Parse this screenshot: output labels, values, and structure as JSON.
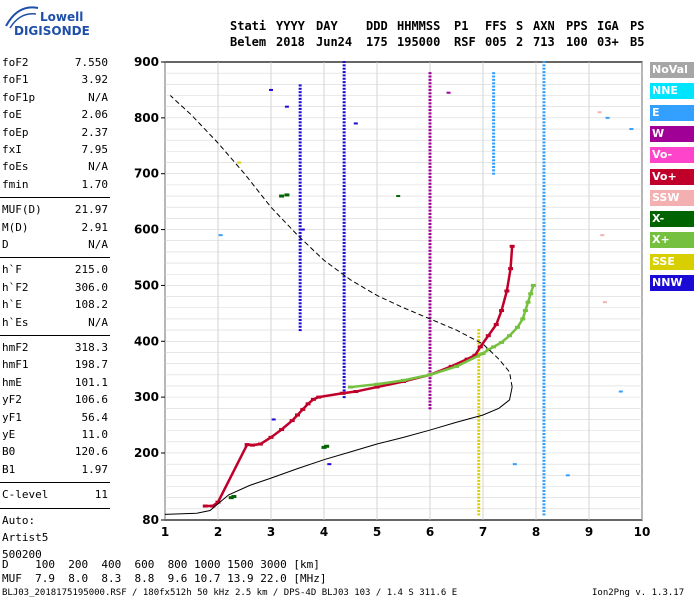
{
  "logo": {
    "line1": "Lowell",
    "line2": "DIGISONDE"
  },
  "header": {
    "labels": [
      "Stati",
      "YYYY",
      "DAY",
      "DDD",
      "HHMMSS",
      "P1",
      "FFS",
      "S",
      "AXN",
      "PPS",
      "IGA",
      "PS"
    ],
    "values": [
      "Belem",
      "2018",
      "Jun24",
      "175",
      "195000",
      "RSF",
      "005",
      "2",
      "713",
      "100",
      "03+",
      "B5"
    ]
  },
  "params": {
    "group1": [
      {
        "k": "foF2",
        "v": "7.550"
      },
      {
        "k": "foF1",
        "v": "3.92"
      },
      {
        "k": "foF1p",
        "v": "N/A"
      },
      {
        "k": "foE",
        "v": "2.06"
      },
      {
        "k": "foEp",
        "v": "2.37"
      },
      {
        "k": "fxI",
        "v": "7.95"
      },
      {
        "k": "foEs",
        "v": "N/A"
      },
      {
        "k": "fmin",
        "v": "1.70"
      }
    ],
    "group2": [
      {
        "k": "MUF(D)",
        "v": "21.97"
      },
      {
        "k": "M(D)",
        "v": "2.91"
      },
      {
        "k": "D",
        "v": "N/A"
      }
    ],
    "group3": [
      {
        "k": "h`F",
        "v": "215.0"
      },
      {
        "k": "h`F2",
        "v": "306.0"
      },
      {
        "k": "h`E",
        "v": "108.2"
      },
      {
        "k": "h`Es",
        "v": "N/A"
      }
    ],
    "group4": [
      {
        "k": "hmF2",
        "v": "318.3"
      },
      {
        "k": "hmF1",
        "v": "198.7"
      },
      {
        "k": "hmE",
        "v": "101.1"
      },
      {
        "k": "yF2",
        "v": "106.6"
      },
      {
        "k": "yF1",
        "v": "56.4"
      },
      {
        "k": "yE",
        "v": "11.0"
      },
      {
        "k": "B0",
        "v": "120.6"
      },
      {
        "k": "B1",
        "v": "1.97"
      }
    ],
    "group5": [
      {
        "k": "C-level",
        "v": "11"
      }
    ],
    "auto": [
      "Auto:",
      "Artist5",
      "500200"
    ]
  },
  "legend": [
    {
      "label": "NoVal",
      "color": "#a6a6a6"
    },
    {
      "label": "NNE",
      "color": "#00e5ff"
    },
    {
      "label": "E",
      "color": "#33a0ff"
    },
    {
      "label": "W",
      "color": "#a00096"
    },
    {
      "label": "Vo-",
      "color": "#ff44cc"
    },
    {
      "label": "Vo+",
      "color": "#c0002a"
    },
    {
      "label": "SSW",
      "color": "#f4b0b0"
    },
    {
      "label": "X-",
      "color": "#006400"
    },
    {
      "label": "X+",
      "color": "#76c040"
    },
    {
      "label": "SSE",
      "color": "#d8cf00"
    },
    {
      "label": "NNW",
      "color": "#1a0ad6"
    }
  ],
  "mufTable": {
    "row1": "D    100  200  400  600  800 1000 1500 3000 [km]",
    "row2": "MUF  7.9  8.0  8.3  8.8  9.6 10.7 13.9 22.0 [MHz]"
  },
  "footer": {
    "left": "BLJ03_2018175195000.RSF / 180fx512h 50 kHz 2.5 km / DPS-4D BLJ03 103 / 1.4 S 311.6 E",
    "right": "Ion2Png v. 1.3.17"
  },
  "chart_data": {
    "type": "scatter",
    "xlim": [
      1,
      10
    ],
    "ylim": [
      80,
      900
    ],
    "xticks": [
      1,
      2,
      3,
      4,
      5,
      6,
      7,
      8,
      9,
      10
    ],
    "yticks": [
      80,
      200,
      300,
      400,
      500,
      600,
      700,
      800,
      900
    ],
    "xunit": "MHz",
    "yunit": "km",
    "series": [
      {
        "mode": "O",
        "color": "#c0002a",
        "x": [
          1.76,
          1.9,
          2.0,
          2.55,
          2.65,
          2.8,
          3.0,
          3.2,
          3.4,
          3.5,
          3.6,
          3.7,
          3.8,
          3.9,
          4.35,
          4.6,
          5.0,
          5.5,
          6.0,
          6.4,
          6.7,
          6.85,
          6.95,
          7.1,
          7.25,
          7.35,
          7.45,
          7.52,
          7.55
        ],
        "y": [
          105,
          105,
          112,
          215,
          214,
          216,
          228,
          242,
          258,
          268,
          278,
          288,
          296,
          300,
          307,
          310,
          318,
          328,
          340,
          355,
          368,
          375,
          390,
          410,
          430,
          455,
          490,
          530,
          570
        ]
      },
      {
        "mode": "X",
        "color": "#76c040",
        "x": [
          4.5,
          5.0,
          5.5,
          6.0,
          6.5,
          7.0,
          7.1,
          7.2,
          7.35,
          7.5,
          7.65,
          7.75,
          7.8,
          7.85,
          7.9,
          7.95
        ],
        "y": [
          318,
          323,
          330,
          340,
          355,
          378,
          385,
          390,
          398,
          410,
          425,
          440,
          455,
          470,
          485,
          500
        ]
      },
      {
        "mode": "Es/F1",
        "color": "#006400",
        "x": [
          2.25,
          2.3,
          4.0,
          4.05,
          3.2,
          3.3
        ],
        "y": [
          120,
          122,
          210,
          212,
          660,
          662
        ]
      }
    ],
    "profile": {
      "x": [
        1.0,
        1.6,
        1.85,
        2.2,
        2.6,
        3.0,
        3.5,
        4.0,
        4.5,
        5.0,
        5.5,
        6.0,
        6.5,
        7.0,
        7.3,
        7.5,
        7.55,
        7.5,
        7.3,
        7.0,
        6.5,
        6.0,
        5.5,
        5.0,
        4.5,
        4.0,
        3.5,
        3.0,
        2.5,
        2.0,
        1.5,
        1.1
      ],
      "y": [
        90,
        92,
        97,
        125,
        142,
        155,
        172,
        188,
        202,
        216,
        228,
        241,
        255,
        268,
        280,
        295,
        318,
        345,
        368,
        395,
        420,
        440,
        460,
        482,
        510,
        545,
        590,
        640,
        700,
        755,
        805,
        840
      ]
    }
  }
}
